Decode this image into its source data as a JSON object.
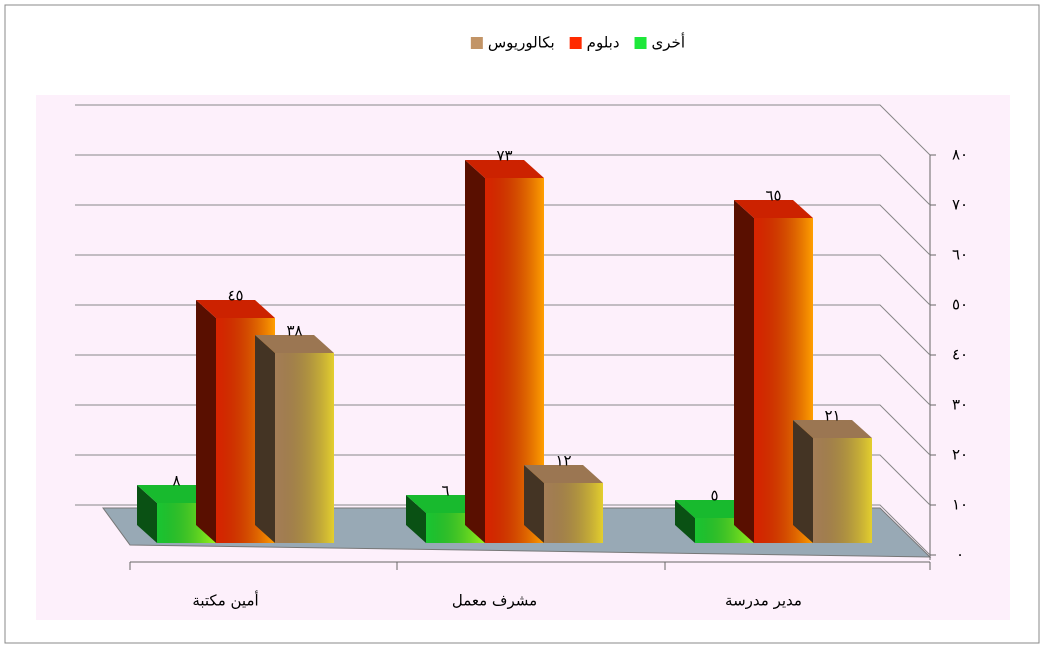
{
  "chart_data": {
    "type": "bar3d",
    "categories": [
      "أمين مكتبة",
      "مشرف معمل",
      "مدير مدرسة"
    ],
    "series": [
      {
        "name": "أخرى",
        "color": "#1ee83a",
        "values": [
          8,
          6,
          5
        ],
        "value_labels": [
          "٨",
          "٦",
          "٥"
        ]
      },
      {
        "name": "دبلوم",
        "color": "#ff2a00",
        "values": [
          45,
          73,
          65
        ],
        "value_labels": [
          "٤٥",
          "٧٣",
          "٦٥"
        ]
      },
      {
        "name": "بكالوريوس",
        "color": "#c29466",
        "values": [
          38,
          12,
          21
        ],
        "value_labels": [
          "٣٨",
          "١٢",
          "٢١"
        ]
      }
    ],
    "ylim": [
      0,
      80
    ],
    "yticks": [
      {
        "value": 0,
        "label": "٠"
      },
      {
        "value": 10,
        "label": "١٠"
      },
      {
        "value": 20,
        "label": "٢٠"
      },
      {
        "value": 30,
        "label": "٣٠"
      },
      {
        "value": 40,
        "label": "٤٠"
      },
      {
        "value": 50,
        "label": "٥٠"
      },
      {
        "value": 60,
        "label": "٦٠"
      },
      {
        "value": 70,
        "label": "٧٠"
      },
      {
        "value": 80,
        "label": "٨٠"
      }
    ],
    "grid": true,
    "legend": "top"
  }
}
